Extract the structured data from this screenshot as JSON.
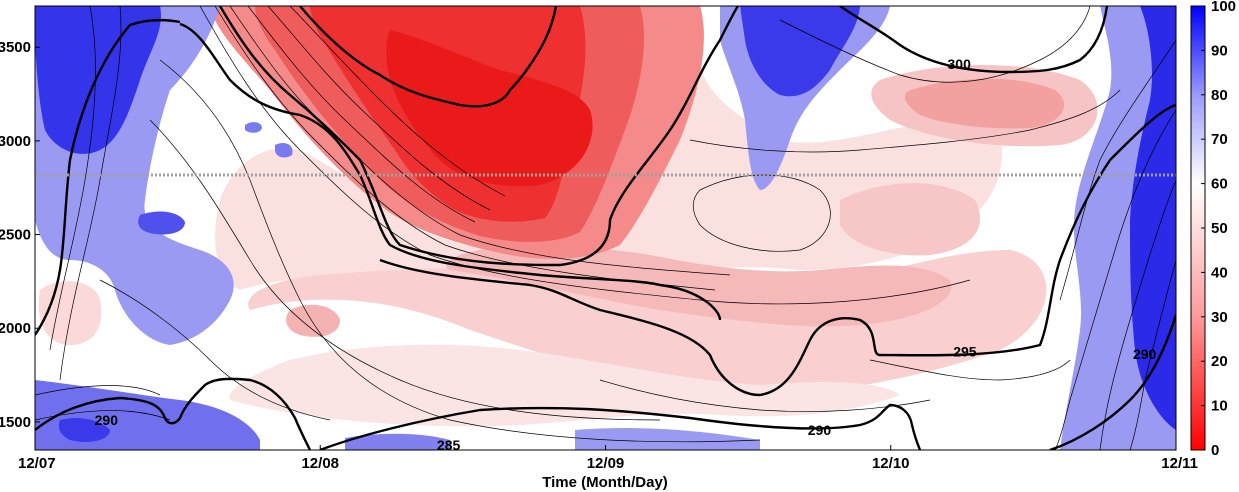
{
  "chart_data": {
    "type": "heatmap",
    "title": "",
    "xlabel": "Time (Month/Day)",
    "ylabel": "",
    "x_ticks": [
      "12/07",
      "12/08",
      "12/09",
      "12/10",
      "12/11"
    ],
    "y_ticks": [
      "1500",
      "2000",
      "2500",
      "3000",
      "3500"
    ],
    "ylim": [
      1350,
      3720
    ],
    "colorbar": {
      "ticks": [
        "0",
        "10",
        "20",
        "30",
        "40",
        "50",
        "60",
        "70",
        "80",
        "90",
        "100"
      ],
      "range": [
        0,
        100
      ],
      "low_color": "#ff0000",
      "mid_color": "#ffffff",
      "high_color": "#0000ff"
    },
    "reference_line": {
      "y": 2800,
      "style": "dotted",
      "color": "#a0a0a0"
    },
    "contour_labels": [
      {
        "text": "290",
        "x_day": 7.25,
        "y": 1490
      },
      {
        "text": "285",
        "x_day": 8.45,
        "y": 1355
      },
      {
        "text": "290",
        "x_day": 9.75,
        "y": 1435
      },
      {
        "text": "295",
        "x_day": 10.26,
        "y": 1855
      },
      {
        "text": "300",
        "x_day": 10.24,
        "y": 3390
      },
      {
        "text": "290",
        "x_day": 10.89,
        "y": 1840
      }
    ],
    "regions": [
      {
        "kind": "red",
        "level": 15,
        "desc": "core maximum dryness",
        "cx": 8.72,
        "cy": 3080,
        "rx": 0.42,
        "ry": 500
      },
      {
        "kind": "red",
        "level": 35,
        "desc": "upper-left dry tongue",
        "cx": 8.62,
        "cy": 3000,
        "rx": 0.72,
        "ry": 720
      },
      {
        "kind": "red",
        "level": 45,
        "desc": "broad mid-level dry layer",
        "cx": 9.2,
        "cy": 2100,
        "rx": 1.4,
        "ry": 480
      },
      {
        "kind": "red",
        "level": 45,
        "desc": "upper right dry patch",
        "cx": 10.25,
        "cy": 3250,
        "rx": 0.45,
        "ry": 260
      },
      {
        "kind": "blue",
        "level": 88,
        "desc": "left moist column",
        "cx": 7.2,
        "cy": 3100,
        "rx": 0.28,
        "ry": 600
      },
      {
        "kind": "blue",
        "level": 88,
        "desc": "top moist patch day 9.6",
        "cx": 9.8,
        "cy": 3450,
        "rx": 0.35,
        "ry": 300
      },
      {
        "kind": "blue",
        "level": 92,
        "desc": "right moist column",
        "cx": 10.93,
        "cy": 2300,
        "rx": 0.2,
        "ry": 1100
      },
      {
        "kind": "blue",
        "level": 80,
        "desc": "bottom-left moist layer",
        "cx": 7.25,
        "cy": 1440,
        "rx": 0.3,
        "ry": 120
      },
      {
        "kind": "blue",
        "level": 75,
        "desc": "bottom moist strip",
        "cx": 9.3,
        "cy": 1380,
        "rx": 0.55,
        "ry": 60
      }
    ]
  }
}
